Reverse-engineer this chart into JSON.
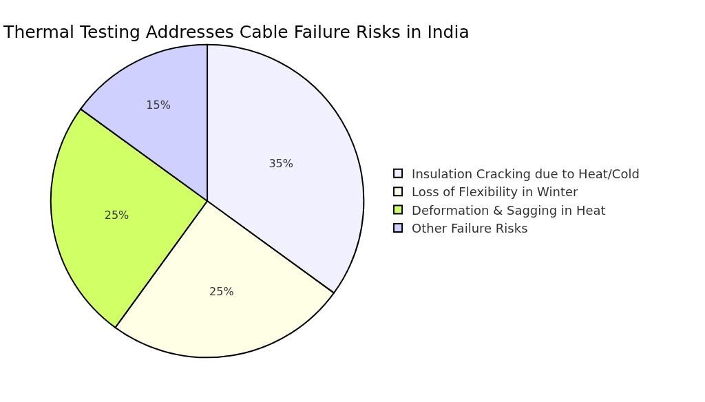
{
  "chart_data": {
    "type": "pie",
    "title": "Thermal Testing Addresses Cable Failure Risks in India",
    "categories": [
      "Insulation Cracking due to Heat/Cold",
      "Loss of Flexibility in Winter",
      "Deformation & Sagging in Heat",
      "Other Failure Risks"
    ],
    "values": [
      35,
      25,
      25,
      15
    ],
    "value_labels": [
      "35%",
      "25%",
      "25%",
      "15%"
    ],
    "colors": [
      "#f0f0ff",
      "#ffffe6",
      "#d1ff66",
      "#d0d0ff"
    ],
    "legend": "right"
  }
}
